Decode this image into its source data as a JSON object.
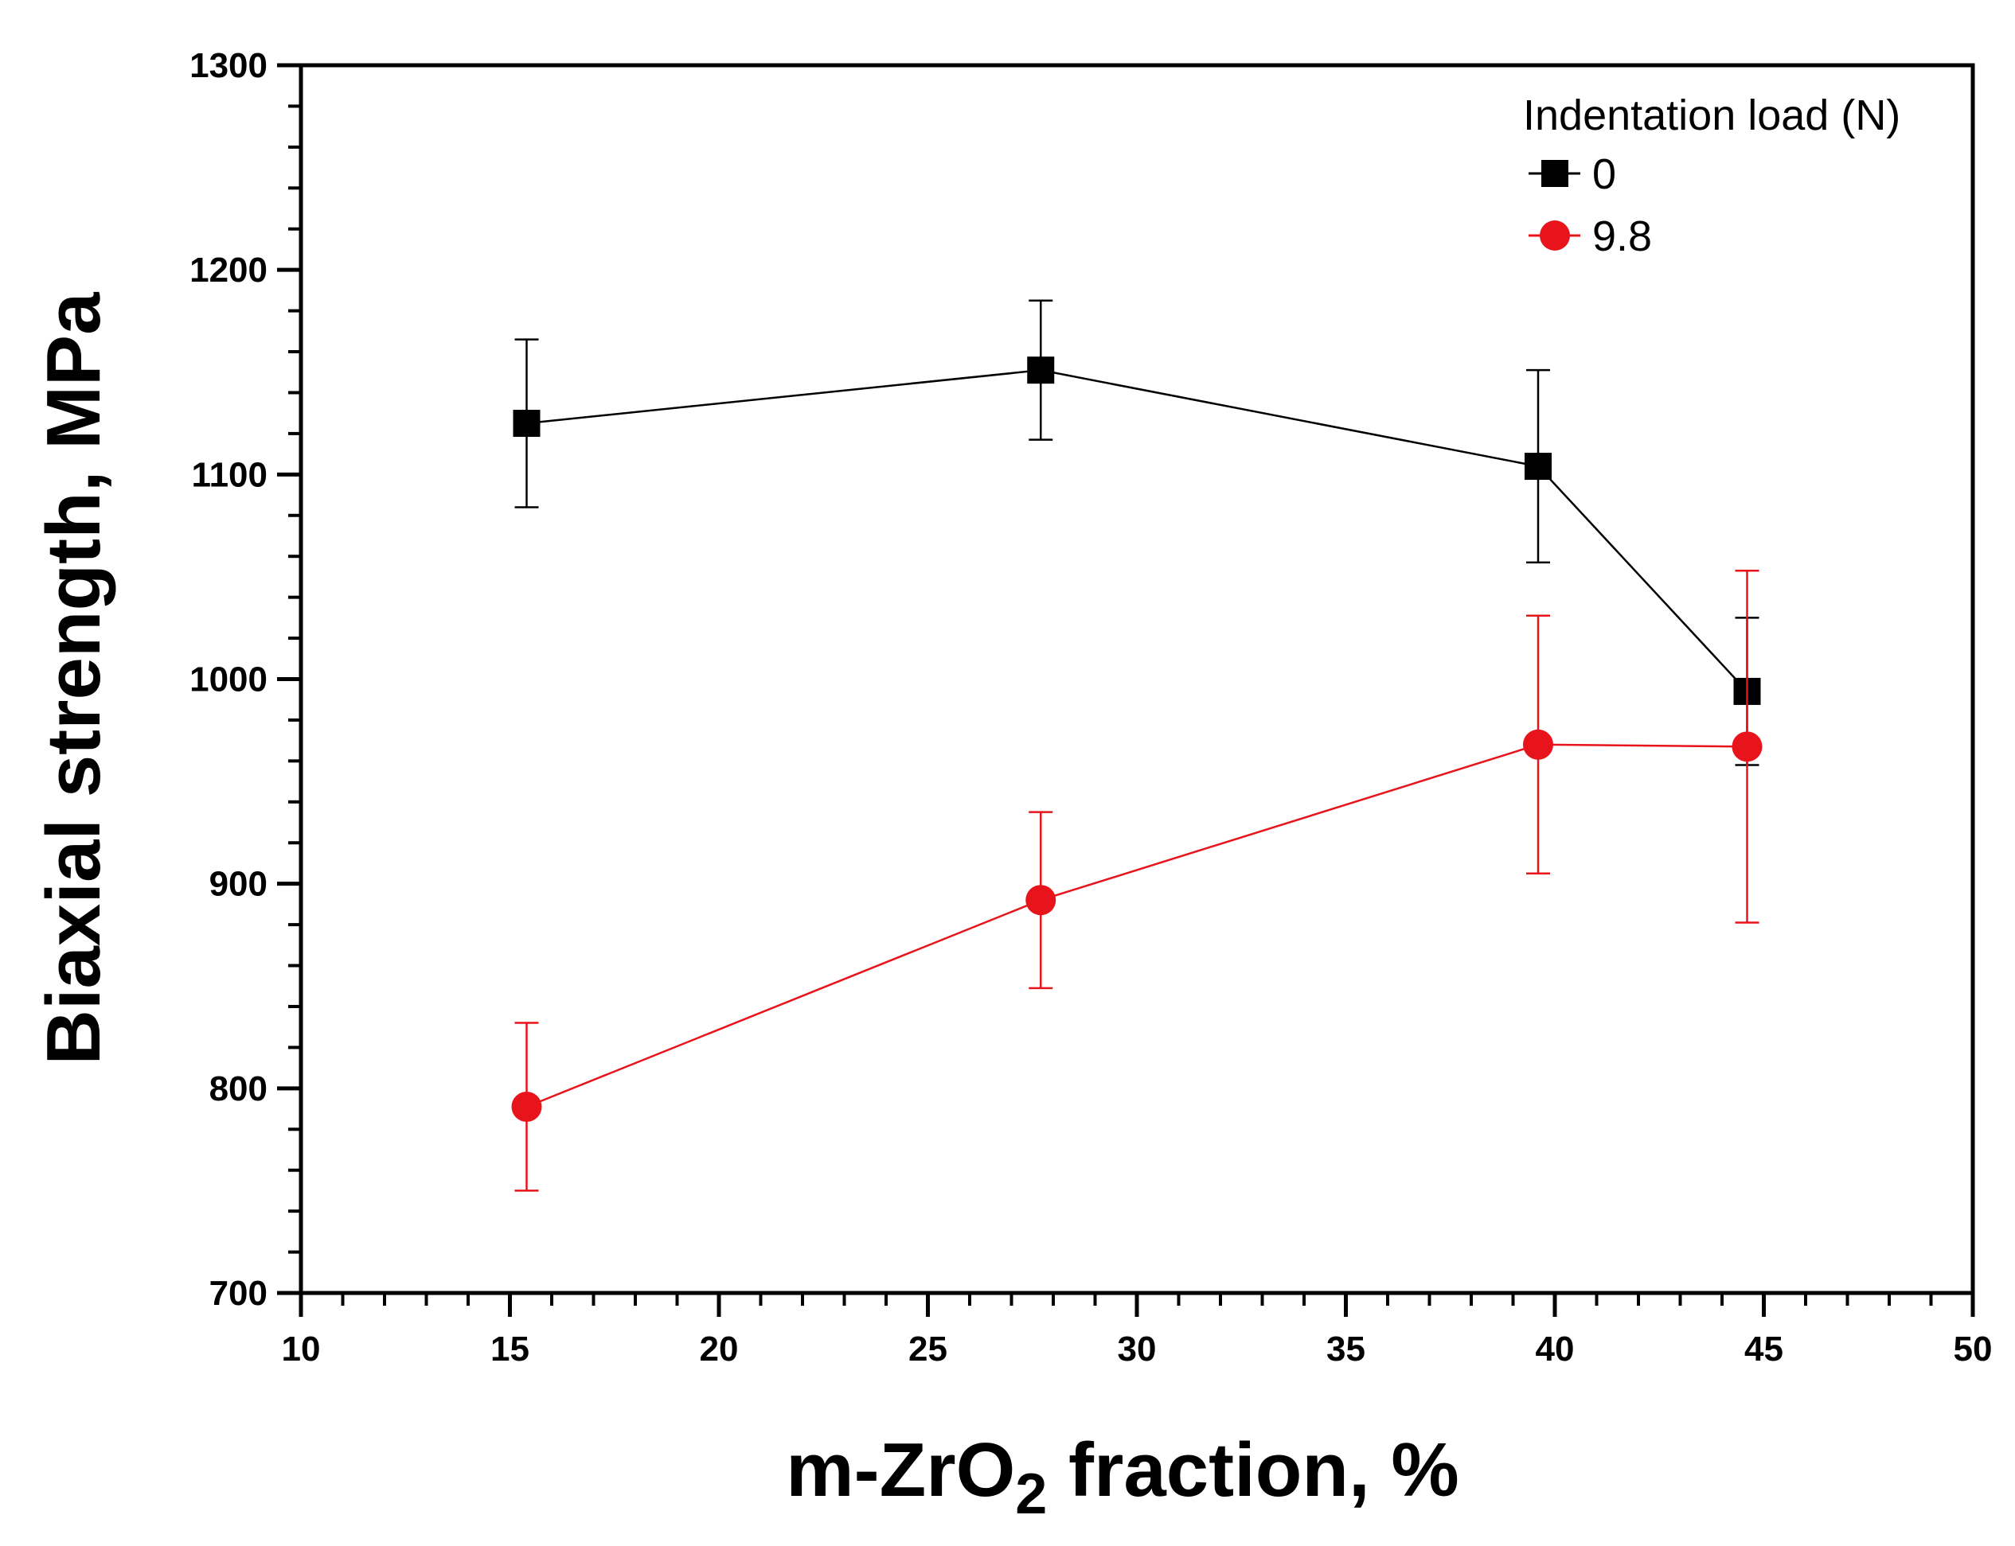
{
  "chart_data": {
    "type": "line",
    "title": "",
    "xlabel_prefix": "m-ZrO",
    "xlabel_sub": "2",
    "xlabel_suffix": " fraction, %",
    "ylabel": "Biaxial strength, MPa",
    "xlim": [
      10,
      50
    ],
    "ylim": [
      700,
      1300
    ],
    "xticks": [
      10,
      15,
      20,
      25,
      30,
      35,
      40,
      45,
      50
    ],
    "xtick_labels": [
      "10",
      "15",
      "20",
      "25",
      "30",
      "35",
      "40",
      "45",
      "50"
    ],
    "yticks": [
      700,
      800,
      900,
      1000,
      1100,
      1200,
      1300
    ],
    "ytick_labels": [
      "700",
      "800",
      "900",
      "1000",
      "1100",
      "1200",
      "1300"
    ],
    "legend_title": "Indentation load (N)",
    "legend_position": "top-right",
    "series": [
      {
        "name": "0",
        "color": "#000000",
        "marker": "square",
        "x": [
          15.4,
          27.7,
          39.6,
          44.6
        ],
        "y": [
          1125,
          1151,
          1104,
          994
        ],
        "err": [
          41,
          34,
          47,
          36
        ]
      },
      {
        "name": "9.8",
        "color": "#e8141b",
        "marker": "circle",
        "x": [
          15.4,
          27.7,
          39.6,
          44.6
        ],
        "y": [
          791,
          892,
          968,
          967
        ],
        "err": [
          41,
          43,
          63,
          86
        ]
      }
    ]
  }
}
